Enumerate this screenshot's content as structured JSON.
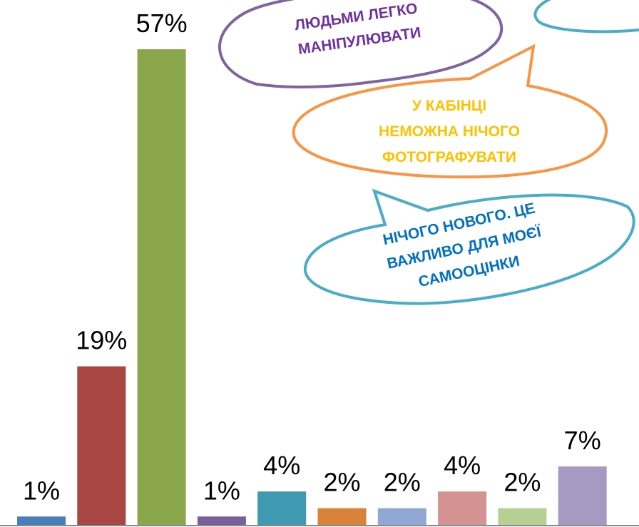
{
  "chart_data": {
    "type": "bar",
    "values": [
      1,
      19,
      57,
      1,
      4,
      2,
      2,
      4,
      2,
      7
    ],
    "value_labels": [
      "1%",
      "19%",
      "57%",
      "1%",
      "4%",
      "2%",
      "2%",
      "4%",
      "2%",
      "7%"
    ],
    "colors": [
      "#4a7ebb",
      "#a84644",
      "#8aa64a",
      "#7b5e9c",
      "#3f99b0",
      "#d9823b",
      "#91a8d4",
      "#d49392",
      "#b8cf94",
      "#a899c2"
    ],
    "annotations": [
      {
        "lines": [
          "ЛЮДЬМИ ЛЕГКО",
          "МАНІПУЛЮВАТИ"
        ],
        "color": "#7030a0"
      },
      {
        "lines": [
          "У КАБІНЦІ",
          "НЕМОЖНА НІЧОГО",
          "ФОТОГРАФУВАТИ"
        ],
        "color": "#ffc000"
      },
      {
        "lines": [
          "НІЧОГО НОВОГО. ЦЕ",
          "ВАЖЛИВО ДЛЯ МОЄЇ",
          "САМООЦІНКИ"
        ],
        "color": "#0070c0"
      }
    ]
  }
}
